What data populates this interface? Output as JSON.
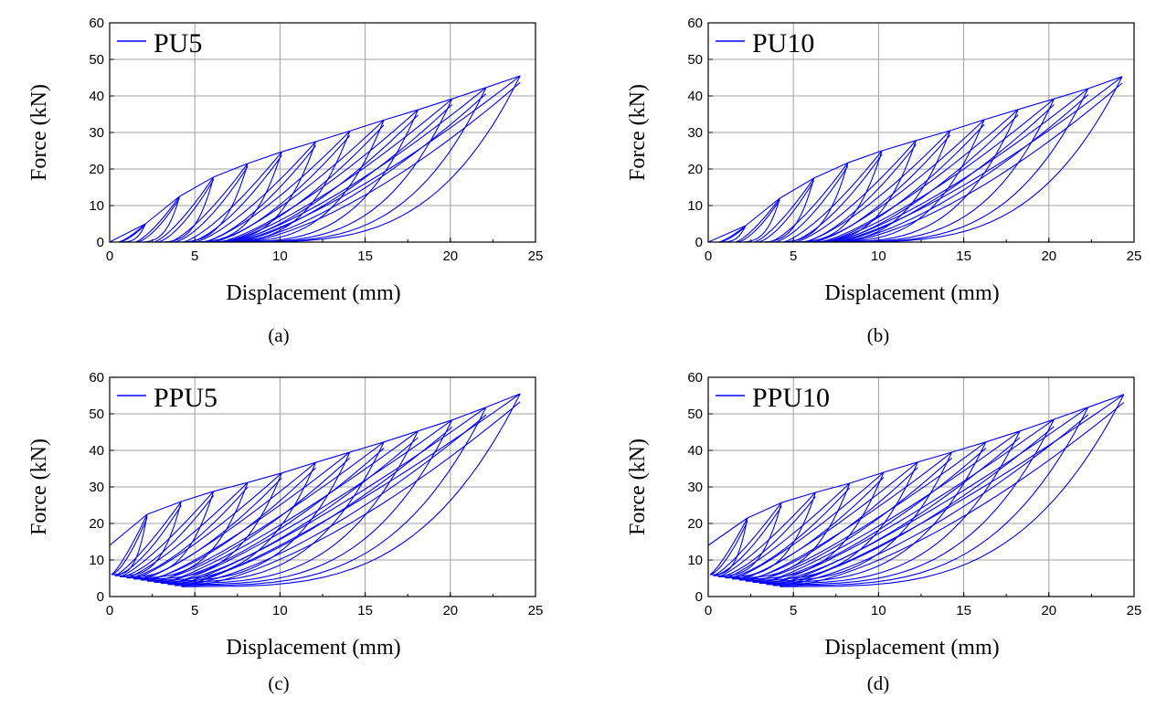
{
  "chart_data": [
    {
      "type": "line",
      "panel": "a",
      "caption": "(a)",
      "xlabel": "Displacement (mm)",
      "ylabel": "Force (kN)",
      "xlim": [
        0,
        25
      ],
      "ylim": [
        0,
        60
      ],
      "xticks": [
        0,
        5,
        10,
        15,
        20,
        25
      ],
      "yticks": [
        0,
        10,
        20,
        30,
        40,
        50,
        60
      ],
      "grid": true,
      "legend_position": "top-left",
      "series": [
        {
          "name": "PU5",
          "color": "#0000ff",
          "loops": [
            {
              "peak_x": 2.1,
              "peak_y": 5.0,
              "residual_x": 0.5
            },
            {
              "peak_x": 4.1,
              "peak_y": 12.5,
              "residual_x": 1.5
            },
            {
              "peak_x": 6.1,
              "peak_y": 17.8,
              "residual_x": 2.6
            },
            {
              "peak_x": 8.1,
              "peak_y": 21.5,
              "residual_x": 3.5
            },
            {
              "peak_x": 10.1,
              "peak_y": 24.7,
              "residual_x": 4.3
            },
            {
              "peak_x": 12.1,
              "peak_y": 27.5,
              "residual_x": 5.0
            },
            {
              "peak_x": 14.1,
              "peak_y": 30.4,
              "residual_x": 5.5
            },
            {
              "peak_x": 16.1,
              "peak_y": 33.4,
              "residual_x": 6.0
            },
            {
              "peak_x": 18.1,
              "peak_y": 36.2,
              "residual_x": 6.4
            },
            {
              "peak_x": 20.1,
              "peak_y": 39.2,
              "residual_x": 6.7
            },
            {
              "peak_x": 22.1,
              "peak_y": 42.3,
              "residual_x": 7.0
            },
            {
              "peak_x": 24.1,
              "peak_y": 45.5,
              "residual_x": 7.2
            }
          ]
        }
      ]
    },
    {
      "type": "line",
      "panel": "b",
      "caption": "(b)",
      "xlabel": "Displacement (mm)",
      "ylabel": "Force (kN)",
      "xlim": [
        0,
        25
      ],
      "ylim": [
        0,
        60
      ],
      "xticks": [
        0,
        5,
        10,
        15,
        20,
        25
      ],
      "yticks": [
        0,
        10,
        20,
        30,
        40,
        50,
        60
      ],
      "grid": true,
      "legend_position": "top-left",
      "series": [
        {
          "name": "PU10",
          "color": "#0000ff",
          "loops": [
            {
              "peak_x": 2.2,
              "peak_y": 4.5,
              "residual_x": 0.6
            },
            {
              "peak_x": 4.2,
              "peak_y": 12.0,
              "residual_x": 1.6
            },
            {
              "peak_x": 6.2,
              "peak_y": 17.5,
              "residual_x": 2.7
            },
            {
              "peak_x": 8.2,
              "peak_y": 21.7,
              "residual_x": 3.6
            },
            {
              "peak_x": 10.2,
              "peak_y": 25.0,
              "residual_x": 4.4
            },
            {
              "peak_x": 12.2,
              "peak_y": 27.8,
              "residual_x": 5.1
            },
            {
              "peak_x": 14.2,
              "peak_y": 30.5,
              "residual_x": 5.6
            },
            {
              "peak_x": 16.2,
              "peak_y": 33.5,
              "residual_x": 6.1
            },
            {
              "peak_x": 18.2,
              "peak_y": 36.3,
              "residual_x": 6.5
            },
            {
              "peak_x": 20.3,
              "peak_y": 39.2,
              "residual_x": 6.8
            },
            {
              "peak_x": 22.3,
              "peak_y": 42.0,
              "residual_x": 7.1
            },
            {
              "peak_x": 24.3,
              "peak_y": 45.3,
              "residual_x": 7.3
            }
          ]
        }
      ]
    },
    {
      "type": "line",
      "panel": "c",
      "caption": "(c)",
      "xlabel": "Displacement (mm)",
      "ylabel": "Force (kN)",
      "xlim": [
        0,
        25
      ],
      "ylim": [
        0,
        60
      ],
      "xticks": [
        0,
        5,
        10,
        15,
        20,
        25
      ],
      "yticks": [
        0,
        10,
        20,
        30,
        40,
        50,
        60
      ],
      "grid": true,
      "legend_position": "top-left",
      "series": [
        {
          "name": "PPU5",
          "color": "#0000ff",
          "loops": [
            {
              "peak_x": 2.2,
              "peak_y": 22.5,
              "residual_x": 0.1
            },
            {
              "peak_x": 4.2,
              "peak_y": 26.0,
              "residual_x": 0.3
            },
            {
              "peak_x": 6.1,
              "peak_y": 28.8,
              "residual_x": 0.6
            },
            {
              "peak_x": 8.1,
              "peak_y": 31.2,
              "residual_x": 1.0
            },
            {
              "peak_x": 10.1,
              "peak_y": 33.8,
              "residual_x": 1.4
            },
            {
              "peak_x": 12.1,
              "peak_y": 36.7,
              "residual_x": 1.8
            },
            {
              "peak_x": 14.1,
              "peak_y": 39.5,
              "residual_x": 2.2
            },
            {
              "peak_x": 16.1,
              "peak_y": 42.3,
              "residual_x": 2.6
            },
            {
              "peak_x": 18.1,
              "peak_y": 45.3,
              "residual_x": 3.0
            },
            {
              "peak_x": 20.1,
              "peak_y": 48.3,
              "residual_x": 3.4
            },
            {
              "peak_x": 22.1,
              "peak_y": 51.8,
              "residual_x": 3.8
            },
            {
              "peak_x": 24.1,
              "peak_y": 55.5,
              "residual_x": 4.2
            }
          ]
        }
      ]
    },
    {
      "type": "line",
      "panel": "d",
      "caption": "(d)",
      "xlabel": "Displacement (mm)",
      "ylabel": "Force (kN)",
      "xlim": [
        0,
        25
      ],
      "ylim": [
        0,
        60
      ],
      "xticks": [
        0,
        5,
        10,
        15,
        20,
        25
      ],
      "yticks": [
        0,
        10,
        20,
        30,
        40,
        50,
        60
      ],
      "grid": true,
      "legend_position": "top-left",
      "series": [
        {
          "name": "PPU10",
          "color": "#0000ff",
          "loops": [
            {
              "peak_x": 2.3,
              "peak_y": 21.5,
              "residual_x": 0.1
            },
            {
              "peak_x": 4.3,
              "peak_y": 25.7,
              "residual_x": 0.3
            },
            {
              "peak_x": 6.3,
              "peak_y": 28.5,
              "residual_x": 0.6
            },
            {
              "peak_x": 8.3,
              "peak_y": 31.0,
              "residual_x": 1.0
            },
            {
              "peak_x": 10.3,
              "peak_y": 34.0,
              "residual_x": 1.4
            },
            {
              "peak_x": 12.3,
              "peak_y": 36.8,
              "residual_x": 1.8
            },
            {
              "peak_x": 14.3,
              "peak_y": 39.5,
              "residual_x": 2.2
            },
            {
              "peak_x": 16.3,
              "peak_y": 42.3,
              "residual_x": 2.6
            },
            {
              "peak_x": 18.3,
              "peak_y": 45.3,
              "residual_x": 3.0
            },
            {
              "peak_x": 20.3,
              "peak_y": 48.5,
              "residual_x": 3.4
            },
            {
              "peak_x": 22.3,
              "peak_y": 51.8,
              "residual_x": 3.8
            },
            {
              "peak_x": 24.4,
              "peak_y": 55.3,
              "residual_x": 4.2
            }
          ]
        }
      ]
    }
  ]
}
